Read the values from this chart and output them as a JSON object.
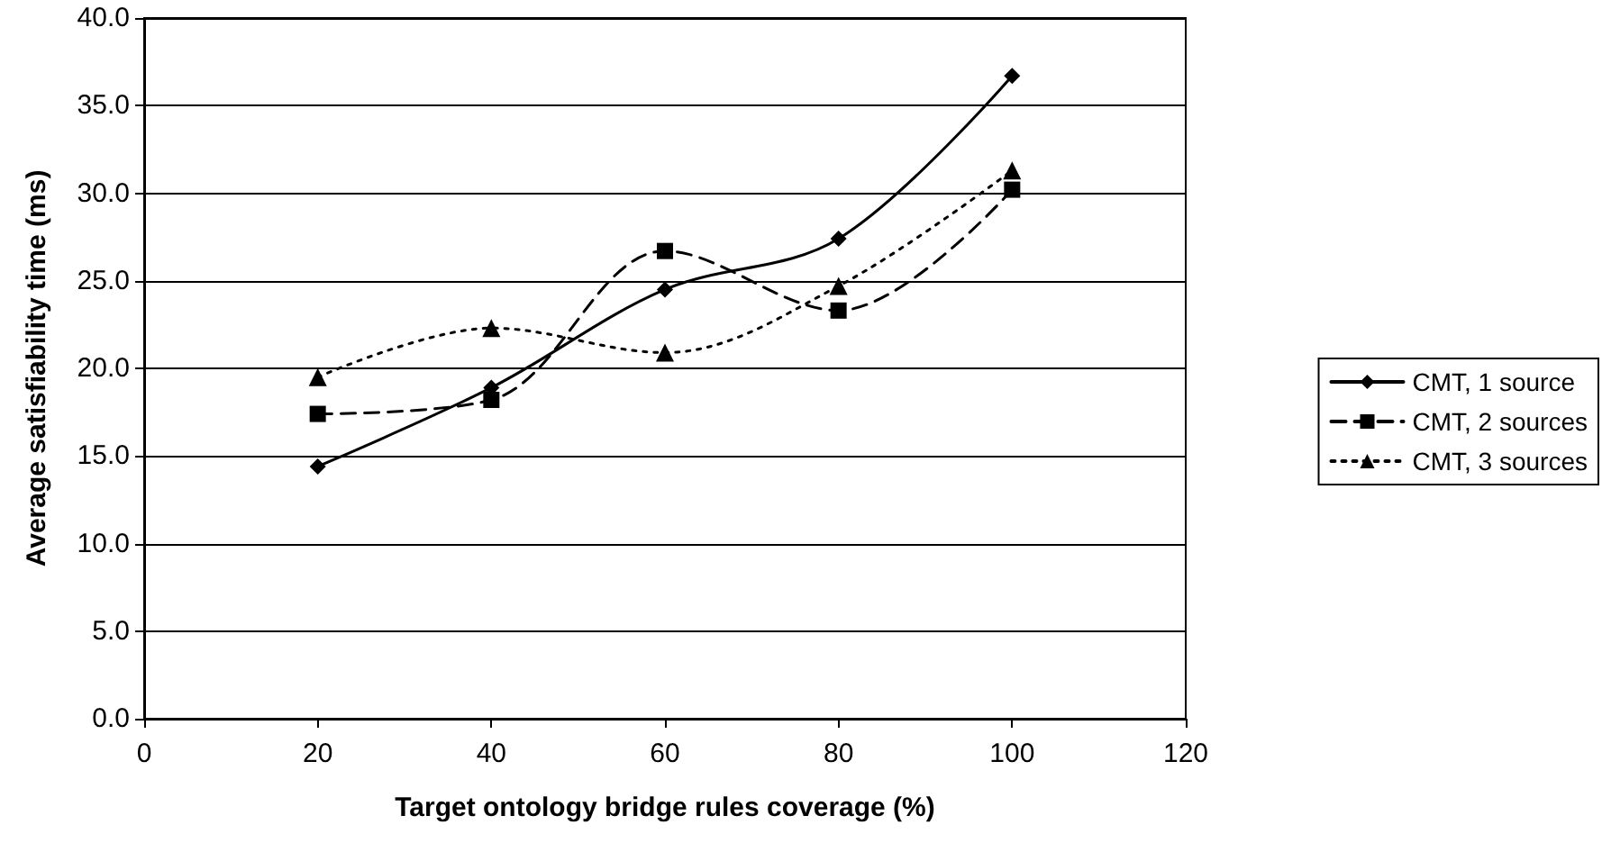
{
  "chart_data": {
    "type": "line",
    "xlabel": "Target ontology bridge rules coverage (%)",
    "ylabel": "Average satisfiability time (ms)",
    "x": [
      20,
      40,
      60,
      80,
      100
    ],
    "series": [
      {
        "name": "CMT, 1 source",
        "color": "#000000",
        "marker": "diamond",
        "line_style": "solid",
        "values": [
          14.4,
          18.9,
          24.5,
          27.4,
          36.7
        ]
      },
      {
        "name": "CMT, 2 sources",
        "color": "#000000",
        "marker": "square",
        "line_style": "dashed",
        "values": [
          17.4,
          18.2,
          26.7,
          23.3,
          30.2
        ]
      },
      {
        "name": "CMT, 3 sources",
        "color": "#000000",
        "marker": "triangle",
        "line_style": "dotted",
        "values": [
          19.5,
          22.3,
          20.9,
          24.7,
          31.3
        ]
      }
    ],
    "xlim": [
      0,
      120
    ],
    "xticks": [
      0,
      20,
      40,
      60,
      80,
      100,
      120
    ],
    "ylim": [
      0,
      40
    ],
    "yticks": [
      {
        "value": 0,
        "label": "0.0"
      },
      {
        "value": 5,
        "label": "5.0"
      },
      {
        "value": 10,
        "label": "10.0"
      },
      {
        "value": 15,
        "label": "15.0"
      },
      {
        "value": 20,
        "label": "20.0"
      },
      {
        "value": 25,
        "label": "25.0"
      },
      {
        "value": 30,
        "label": "30.0"
      },
      {
        "value": 35,
        "label": "35.0"
      },
      {
        "value": 40,
        "label": "40.0"
      }
    ],
    "grid": "y",
    "legend": "right"
  }
}
